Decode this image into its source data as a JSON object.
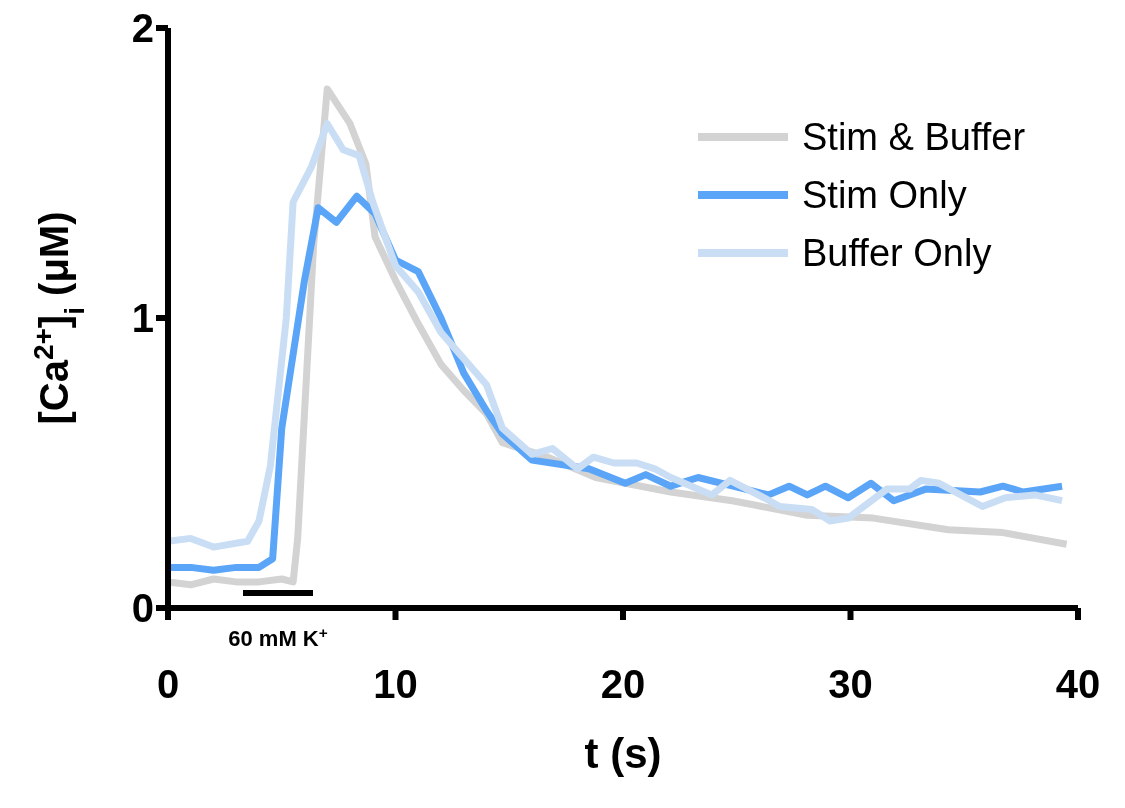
{
  "chart_data": {
    "type": "line",
    "xlabel": "t (s)",
    "ylabel": "[Ca$^{2+}$]$_{i}$ (μM)",
    "xlim": [
      0,
      40
    ],
    "xticks": [
      0,
      10,
      20,
      30,
      40
    ],
    "ylim": [
      0,
      2
    ],
    "yticks": [
      0,
      1,
      2
    ],
    "grid": false,
    "legend": "top right",
    "marker": "none",
    "line_style": "solid",
    "annotations": [
      "60 mM K$^{+}$"
    ],
    "series": [
      {
        "name": "Stim & Buffer",
        "color": "#d3d3d3",
        "x": [
          0,
          1,
          2,
          3,
          4,
          5,
          5.5,
          5.7,
          6.4,
          7.0,
          8.0,
          8.7,
          9.1,
          10,
          11,
          12,
          13,
          14,
          14.7,
          16.7,
          18.8,
          22.1,
          24.8,
          28.1,
          31,
          34.3,
          36.7,
          39.5
        ],
        "values": [
          0.09,
          0.08,
          0.1,
          0.09,
          0.09,
          0.1,
          0.09,
          0.24,
          1.25,
          1.79,
          1.67,
          1.53,
          1.28,
          1.13,
          0.98,
          0.84,
          0.75,
          0.67,
          0.57,
          0.52,
          0.45,
          0.4,
          0.37,
          0.32,
          0.31,
          0.27,
          0.26,
          0.22
        ]
      },
      {
        "name": "Stim Only",
        "color": "#5aa5f7",
        "x": [
          0,
          1,
          2,
          3,
          4,
          4.6,
          5.0,
          6.0,
          6.6,
          7.4,
          8.3,
          9.1,
          10,
          11,
          12,
          13,
          14,
          14.7,
          16,
          18.5,
          20.1,
          21,
          22.1,
          23.3,
          26.4,
          27.3,
          28.1,
          28.9,
          29.9,
          30.9,
          31.9,
          33.3,
          35.7,
          36.7,
          37.6,
          39.3
        ],
        "values": [
          0.14,
          0.14,
          0.13,
          0.14,
          0.14,
          0.17,
          0.62,
          1.13,
          1.38,
          1.33,
          1.42,
          1.36,
          1.2,
          1.16,
          1.0,
          0.81,
          0.68,
          0.6,
          0.51,
          0.48,
          0.43,
          0.46,
          0.42,
          0.45,
          0.39,
          0.42,
          0.39,
          0.42,
          0.38,
          0.43,
          0.37,
          0.41,
          0.4,
          0.42,
          0.4,
          0.42
        ]
      },
      {
        "name": "Buffer Only",
        "color": "#c9def5",
        "x": [
          0,
          1,
          2,
          3.5,
          4.0,
          4.5,
          5.2,
          5.5,
          6.3,
          7,
          7.7,
          8.4,
          9,
          10,
          11,
          12,
          13,
          14,
          14.7,
          16,
          16.9,
          18,
          18.7,
          19.6,
          20.6,
          21.4,
          22.1,
          23.9,
          24.7,
          26.2,
          26.9,
          28.3,
          29.1,
          29.9,
          31.6,
          32.6,
          33.1,
          33.9,
          35.8,
          36.8,
          38.1,
          39.3
        ],
        "values": [
          0.23,
          0.24,
          0.21,
          0.23,
          0.3,
          0.49,
          1.0,
          1.4,
          1.52,
          1.67,
          1.58,
          1.56,
          1.4,
          1.18,
          1.09,
          0.95,
          0.86,
          0.77,
          0.62,
          0.53,
          0.55,
          0.48,
          0.52,
          0.5,
          0.5,
          0.48,
          0.45,
          0.39,
          0.44,
          0.38,
          0.35,
          0.34,
          0.3,
          0.31,
          0.41,
          0.41,
          0.44,
          0.43,
          0.35,
          0.38,
          0.39,
          0.37
        ]
      }
    ]
  }
}
